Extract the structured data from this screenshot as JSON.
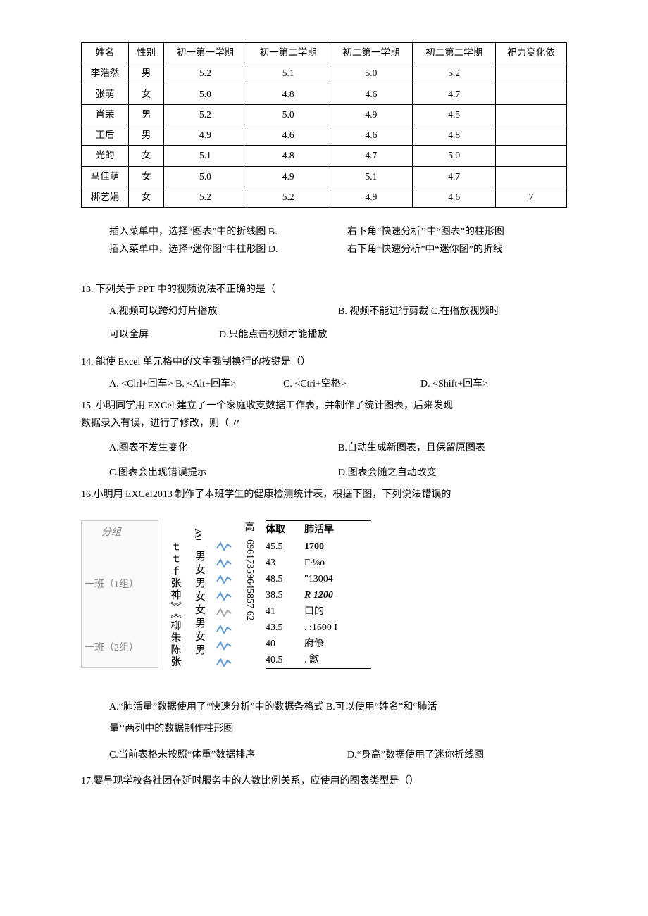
{
  "table12": {
    "headers": [
      "姓名",
      "性别",
      "初一第一学期",
      "初一第二学期",
      "初二第一学期",
      "初二第二学期",
      "祀力变化依"
    ],
    "rows": [
      [
        "李浩然",
        "男",
        "5.2",
        "5.1",
        "5.0",
        "5.2",
        ""
      ],
      [
        "张萌",
        "女",
        "5.0",
        "4.8",
        "4.6",
        "4.7",
        ""
      ],
      [
        "肖荣",
        "男",
        "5.2",
        "5.0",
        "4.9",
        "4.5",
        ""
      ],
      [
        "王后",
        "男",
        "4.9",
        "4.6",
        "4.6",
        "4.8",
        ""
      ],
      [
        "光的",
        "女",
        "5.1",
        "4.8",
        "4.7",
        "5.0",
        ""
      ],
      [
        "马佳萌",
        "女",
        "5.0",
        "4.9",
        "5.1",
        "4.7",
        ""
      ],
      [
        "梆艺娟",
        "女",
        "5.2",
        "5.2",
        "4.9",
        "4.6",
        "7"
      ]
    ],
    "underline_cell": {
      "row": 6,
      "col": 6
    }
  },
  "q12_options": {
    "A": "插入菜单中，选择“图表”中的折线图 B.",
    "B_right": "右下角“快速分析’’中“图表”的柱形图",
    "C": "插入菜单中，选择“迷你图”中柱形图 D.",
    "D_right": "右下角“快速分析”中“迷你图”的折线"
  },
  "q13": {
    "stem": "13.  下列关于 PPT 中的视频说法不正确的是（",
    "A": "A.视频可以跨幻灯片播放",
    "B": "B.   视频不能进行剪裁 C.在播放视频时",
    "line2_left": "可以全屏",
    "D": "D.只能点击视频才能播放"
  },
  "q14": {
    "stem": "14.  能使 Excel 单元格中的文字强制换行的按键是（）",
    "A": "A. <Clrl+回车> B. <Alt+回车>",
    "C": "C. <Ctri+空格>",
    "D": "D. <Shift+回车>"
  },
  "q15": {
    "stem1": "15. 小明同学用 EXCel 建立了一个家庭收支数据工作表，并制作了统计图表，后来发现",
    "stem2": "数据录入有误，进行了修改，则（    〃",
    "A": "A.图表不发生变化",
    "B": "B.自动生成新图表，且保留原图表",
    "C": "C.图表会出现错误提示",
    "D": "D.图表会随之自动改变"
  },
  "q16": {
    "stem": "16.小明用 EXCeI2013 制作了本班学生的健康检测统计表，根据下图，下列说法错误的",
    "fig": {
      "group_labels": {
        "top": "分组",
        "g1": "一班（1组）",
        "g2": "一班（2组）"
      },
      "names_col": "ｔｔｆ张神》《柳朱陈张",
      "gender_top": "tW",
      "gender_col": "男女男女女男女男",
      "spark_colors": [
        "#5b9bd5",
        "#5b9bd5",
        "#5b9bd5",
        "#5b9bd5",
        "#a5a5a5",
        "#5b9bd5",
        "#5b9bd5",
        "#5b9bd5"
      ],
      "height_label": "高",
      "height_col": "69617359645857 62",
      "right_header": [
        "体取",
        "肺活早"
      ],
      "right_rows": [
        [
          "45.5",
          "1700"
        ],
        [
          "43",
          "Γ∙⅛o"
        ],
        [
          "48.5",
          "\"13004"
        ],
        [
          "38.5",
          "R 1200"
        ],
        [
          "41",
          "口的"
        ],
        [
          "43.5",
          ". :1600 I"
        ],
        [
          "40",
          "府僚"
        ],
        [
          "40.5",
          ". 龡"
        ]
      ]
    },
    "optA": "A.“肺活量”数据使用了“快速分析”中的数据条格式 B.可以使用“姓名”和“肺活",
    "optA2": "量’’两列中的数据制作柱形图",
    "C": "C.当前表格未按照“体重”数据排序",
    "D": "D.“身高”数据使用了迷你折线图"
  },
  "q17": {
    "stem": "17.要呈现学校各社团在延时服务中的人数比例关系，应使用的图表类型是（）"
  }
}
